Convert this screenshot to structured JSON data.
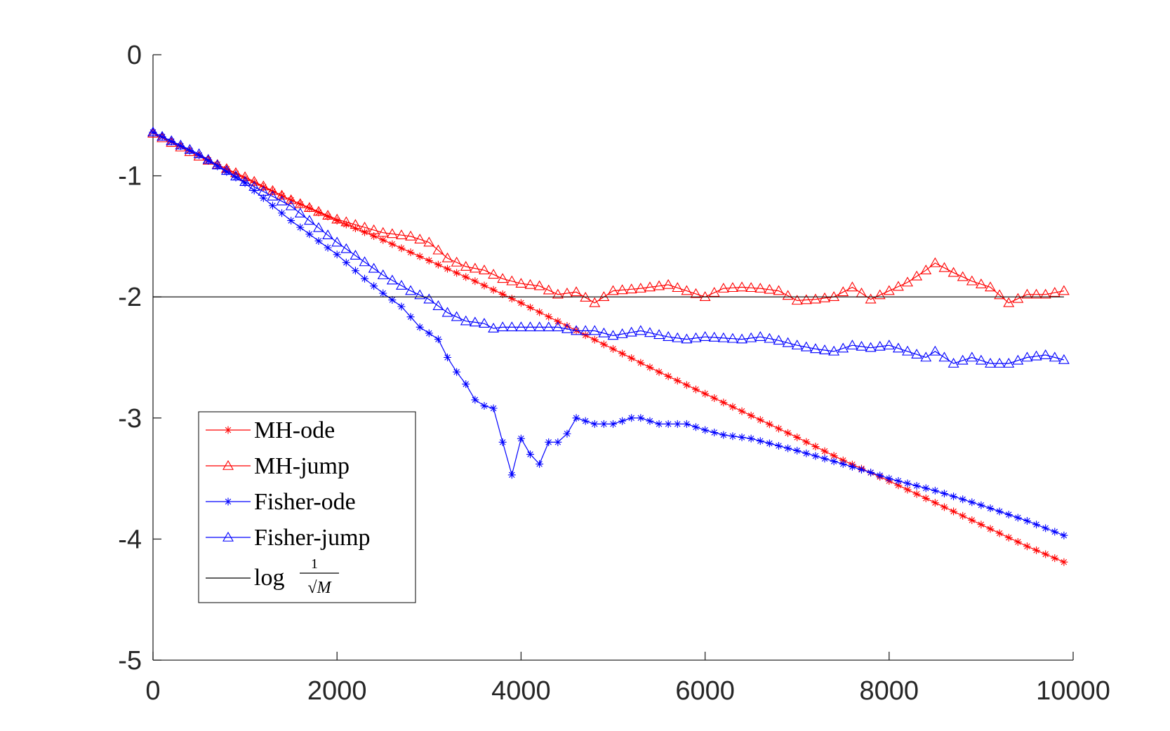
{
  "chart_data": {
    "type": "line",
    "xlim": [
      0,
      10000
    ],
    "ylim": [
      -5,
      0
    ],
    "xticks": [
      "0",
      "2000",
      "4000",
      "6000",
      "8000",
      "10000"
    ],
    "yticks": [
      "0",
      "-1",
      "-2",
      "-3",
      "-4",
      "-5"
    ],
    "grid": false,
    "legend_position": "lower-left",
    "colors": {
      "red": "#ff0000",
      "blue": "#0000ff",
      "black": "#000000"
    },
    "series": [
      {
        "name": "MH-ode",
        "marker": "asterisk",
        "color": "#ff0000",
        "x": [
          0,
          500,
          1000,
          1500,
          2000,
          2500,
          3000,
          3500,
          4000,
          4500,
          5000,
          5500,
          6000,
          6500,
          7000,
          7500,
          8000,
          8500,
          9000,
          9500,
          9900
        ],
        "y": [
          -0.64,
          -0.83,
          -1.02,
          -1.2,
          -1.37,
          -1.53,
          -1.7,
          -1.87,
          -2.05,
          -2.24,
          -2.43,
          -2.62,
          -2.8,
          -2.98,
          -3.16,
          -3.35,
          -3.52,
          -3.7,
          -3.88,
          -4.06,
          -4.19
        ]
      },
      {
        "name": "MH-jump",
        "marker": "triangle",
        "color": "#ff0000",
        "x": [
          0,
          500,
          1000,
          1500,
          2000,
          2500,
          2800,
          3000,
          3200,
          3400,
          3600,
          3800,
          4000,
          4200,
          4400,
          4600,
          4800,
          5000,
          5300,
          5600,
          5800,
          6000,
          6200,
          6400,
          6600,
          6800,
          7000,
          7200,
          7400,
          7600,
          7800,
          8000,
          8200,
          8400,
          8500,
          8700,
          8900,
          9100,
          9300,
          9500,
          9700,
          9900
        ],
        "y": [
          -0.65,
          -0.84,
          -1.01,
          -1.2,
          -1.36,
          -1.47,
          -1.5,
          -1.55,
          -1.68,
          -1.75,
          -1.78,
          -1.85,
          -1.89,
          -1.91,
          -1.98,
          -1.96,
          -2.05,
          -1.95,
          -1.93,
          -1.9,
          -1.95,
          -2.0,
          -1.93,
          -1.92,
          -1.93,
          -1.95,
          -2.03,
          -2.02,
          -2.0,
          -1.92,
          -2.02,
          -1.95,
          -1.88,
          -1.78,
          -1.72,
          -1.8,
          -1.87,
          -1.92,
          -2.05,
          -1.98,
          -1.98,
          -1.95
        ]
      },
      {
        "name": "Fisher-ode",
        "marker": "asterisk",
        "color": "#0000ff",
        "x": [
          0,
          500,
          1000,
          1500,
          2000,
          2300,
          2500,
          2700,
          2900,
          3100,
          3200,
          3300,
          3400,
          3500,
          3600,
          3700,
          3800,
          3900,
          4000,
          4100,
          4200,
          4300,
          4400,
          4500,
          4600,
          4800,
          5000,
          5200,
          5300,
          5500,
          5800,
          6000,
          6200,
          6500,
          7000,
          7500,
          7800,
          8000,
          8500,
          9000,
          9500,
          9900
        ],
        "y": [
          -0.64,
          -0.83,
          -1.06,
          -1.37,
          -1.65,
          -1.85,
          -1.97,
          -2.08,
          -2.25,
          -2.35,
          -2.5,
          -2.62,
          -2.72,
          -2.85,
          -2.9,
          -2.92,
          -3.2,
          -3.47,
          -3.17,
          -3.3,
          -3.38,
          -3.2,
          -3.2,
          -3.13,
          -3.0,
          -3.05,
          -3.05,
          -3.0,
          -3.0,
          -3.05,
          -3.05,
          -3.1,
          -3.14,
          -3.17,
          -3.27,
          -3.38,
          -3.45,
          -3.5,
          -3.6,
          -3.72,
          -3.85,
          -3.97
        ]
      },
      {
        "name": "Fisher-jump",
        "marker": "triangle",
        "color": "#0000ff",
        "x": [
          0,
          500,
          1000,
          1500,
          2000,
          2500,
          2800,
          3000,
          3200,
          3400,
          3600,
          3700,
          3800,
          4000,
          4200,
          4400,
          4600,
          4800,
          5000,
          5300,
          5600,
          5800,
          6000,
          6200,
          6400,
          6600,
          6800,
          7000,
          7200,
          7400,
          7600,
          7800,
          8000,
          8200,
          8400,
          8500,
          8700,
          8900,
          9100,
          9300,
          9500,
          9700,
          9900
        ],
        "y": [
          -0.64,
          -0.82,
          -1.05,
          -1.25,
          -1.55,
          -1.82,
          -1.95,
          -2.02,
          -2.13,
          -2.2,
          -2.22,
          -2.26,
          -2.25,
          -2.25,
          -2.25,
          -2.25,
          -2.28,
          -2.28,
          -2.32,
          -2.28,
          -2.33,
          -2.35,
          -2.33,
          -2.34,
          -2.35,
          -2.33,
          -2.36,
          -2.4,
          -2.43,
          -2.45,
          -2.4,
          -2.42,
          -2.4,
          -2.45,
          -2.5,
          -2.45,
          -2.55,
          -2.5,
          -2.55,
          -2.55,
          -2.5,
          -2.48,
          -2.52
        ]
      },
      {
        "name": "log 1/√M",
        "marker": "none",
        "color": "#000000",
        "x": [
          0,
          9900
        ],
        "y": [
          -2,
          -2
        ]
      }
    ]
  },
  "legend": {
    "items": [
      "MH-ode",
      "MH-jump",
      "Fisher-ode",
      "Fisher-jump"
    ],
    "log_prefix": "log",
    "frac_numerator": "1",
    "frac_denominator": "√M"
  }
}
